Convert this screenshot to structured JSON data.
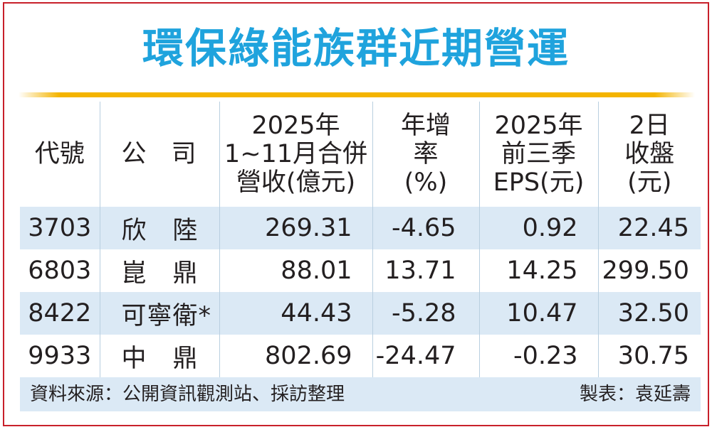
{
  "title": "環保綠能族群近期營運",
  "colors": {
    "title": "#1fa3dd",
    "border": "#c8202a",
    "rule": "#f4b400",
    "stripe": "#dbe9f5"
  },
  "chart_data": {
    "type": "table",
    "columns": [
      {
        "lines": [
          "代號"
        ]
      },
      {
        "lines": [
          "公　司"
        ]
      },
      {
        "lines": [
          "2025年",
          "1~11月合併",
          "營收(億元)"
        ]
      },
      {
        "lines": [
          "年增",
          "率",
          "(%)"
        ]
      },
      {
        "lines": [
          "2025年",
          "前三季",
          "EPS(元)"
        ]
      },
      {
        "lines": [
          "2日",
          "收盤",
          "(元)"
        ]
      }
    ],
    "rows": [
      {
        "code": "3703",
        "company": "欣　陸",
        "revenue": "269.31",
        "growth": "-4.65",
        "eps": "0.92",
        "close": "22.45"
      },
      {
        "code": "6803",
        "company": "崑　鼎",
        "revenue": "88.01",
        "growth": "13.71",
        "eps": "14.25",
        "close": "299.50"
      },
      {
        "code": "8422",
        "company": "可寧衛*",
        "revenue": "44.43",
        "growth": "-5.28",
        "eps": "10.47",
        "close": "32.50"
      },
      {
        "code": "9933",
        "company": "中　鼎",
        "revenue": "802.69",
        "growth": "-24.47",
        "eps": "-0.23",
        "close": "30.75"
      }
    ]
  },
  "footer": {
    "source": "資料來源：公開資訊觀測站、採訪整理",
    "maker": "製表：袁延壽"
  }
}
